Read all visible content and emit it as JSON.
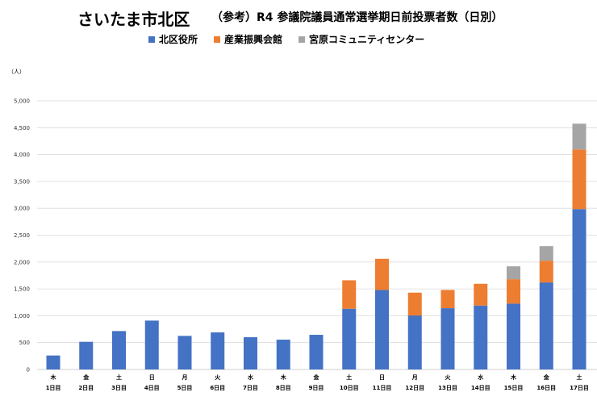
{
  "chart_data": {
    "type": "bar",
    "stacked": true,
    "title": "さいたま市北区",
    "subtitle": "（参考）R4 参議院議員通常選挙期日前投票者数（日別）",
    "unit_label": "（人）",
    "ylim": [
      0,
      5000
    ],
    "y_ticks": [
      "0",
      "500",
      "1,000",
      "1,500",
      "2,000",
      "2,500",
      "3,000",
      "3,500",
      "4,000",
      "4,500",
      "5,000"
    ],
    "y_tick_values": [
      0,
      500,
      1000,
      1500,
      2000,
      2500,
      3000,
      3500,
      4000,
      4500,
      5000
    ],
    "grid": true,
    "legend_position": "top",
    "categories": [
      {
        "weekday": "木",
        "day": "1日目"
      },
      {
        "weekday": "金",
        "day": "2日目"
      },
      {
        "weekday": "土",
        "day": "3日目"
      },
      {
        "weekday": "日",
        "day": "4日目"
      },
      {
        "weekday": "月",
        "day": "5日目"
      },
      {
        "weekday": "火",
        "day": "6日目"
      },
      {
        "weekday": "水",
        "day": "7日目"
      },
      {
        "weekday": "木",
        "day": "8日目"
      },
      {
        "weekday": "金",
        "day": "9日目"
      },
      {
        "weekday": "土",
        "day": "10日目"
      },
      {
        "weekday": "日",
        "day": "11日目"
      },
      {
        "weekday": "月",
        "day": "12日目"
      },
      {
        "weekday": "火",
        "day": "13日目"
      },
      {
        "weekday": "水",
        "day": "14日目"
      },
      {
        "weekday": "木",
        "day": "15日目"
      },
      {
        "weekday": "金",
        "day": "16日目"
      },
      {
        "weekday": "土",
        "day": "17日目"
      }
    ],
    "series": [
      {
        "name": "北区役所",
        "color": "#4472C4",
        "values": [
          260,
          515,
          715,
          910,
          625,
          690,
          600,
          555,
          645,
          1130,
          1480,
          1005,
          1140,
          1190,
          1225,
          1620,
          2985
        ]
      },
      {
        "name": "産業振興会館",
        "color": "#ED7D31",
        "values": [
          0,
          0,
          0,
          0,
          0,
          0,
          0,
          0,
          0,
          530,
          580,
          425,
          340,
          405,
          455,
          405,
          1110
        ]
      },
      {
        "name": "宮原コミュニティセンター",
        "color": "#A5A5A5",
        "values": [
          0,
          0,
          0,
          0,
          0,
          0,
          0,
          0,
          0,
          0,
          0,
          0,
          0,
          0,
          240,
          270,
          480
        ]
      }
    ]
  }
}
